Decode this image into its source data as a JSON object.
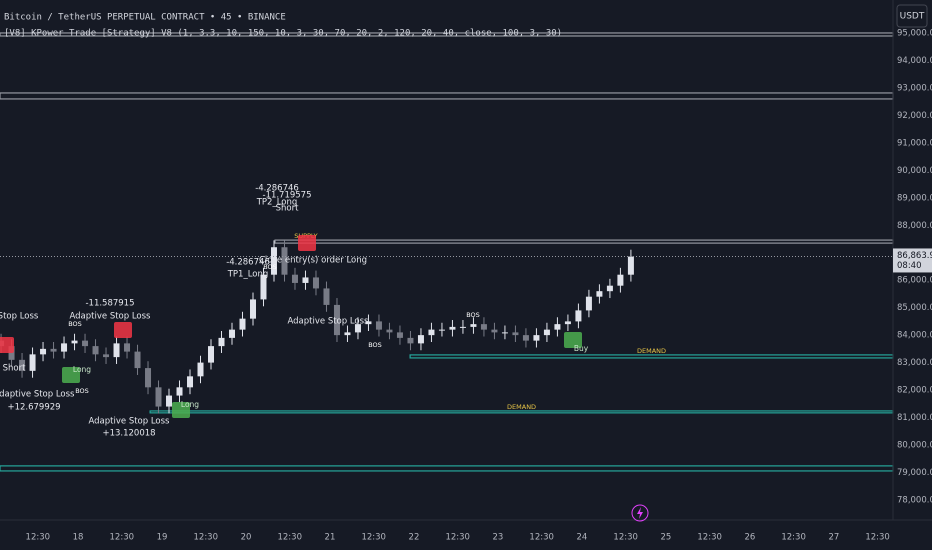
{
  "chart_data": {
    "type": "candlestick",
    "title": "Bitcoin / TetherUS PERPETUAL CONTRACT • 45 • BINANCE",
    "subtitle": "[V8] KPower Trade [Strategy] V8 (1, 3.3, 10, 150, 10, 3, 30, 70, 20, 2, 120, 20, 40, close, 100, 3, 30)",
    "currency": "USDT",
    "countdown": "08:40",
    "up_color": "#e0e3eb",
    "down_color": "#787b86",
    "grid": true,
    "x": [
      2,
      5,
      8,
      11,
      14,
      17,
      20,
      23,
      26,
      29,
      32,
      35,
      38,
      41,
      44,
      47,
      50,
      53,
      56,
      59,
      62,
      65,
      68,
      71,
      74,
      77,
      80,
      83,
      86,
      89,
      92,
      95,
      98,
      101,
      104,
      107,
      110,
      113,
      116,
      119,
      122,
      125,
      128,
      131,
      134,
      137,
      140,
      143,
      146,
      149,
      152,
      155,
      158,
      161,
      164,
      167,
      170,
      173,
      176,
      179,
      182
    ],
    "open": [
      83800,
      83600,
      83100,
      82700,
      83300,
      83500,
      83400,
      83700,
      83800,
      83600,
      83300,
      83200,
      83700,
      83400,
      82800,
      82100,
      81400,
      81800,
      82100,
      82500,
      83000,
      83600,
      83900,
      84200,
      84600,
      85300,
      86200,
      87200,
      86200,
      85900,
      86100,
      85700,
      85100,
      84000,
      84100,
      84400,
      84500,
      84200,
      84100,
      83900,
      83700,
      84000,
      84200,
      84200,
      84300,
      84300,
      84400,
      84200,
      84100,
      84100,
      84000,
      83800,
      84000,
      84200,
      84400,
      84500,
      84900,
      85400,
      85600,
      85800,
      86200
    ],
    "high": [
      84050,
      83850,
      83350,
      83550,
      83750,
      83750,
      83950,
      84050,
      84050,
      83850,
      83550,
      83950,
      83950,
      83650,
      83050,
      82350,
      82050,
      82350,
      82750,
      83250,
      83850,
      84150,
      84450,
      84850,
      85550,
      86450,
      87450,
      87450,
      86450,
      86350,
      86350,
      85950,
      85350,
      84350,
      84650,
      84750,
      84750,
      84450,
      84350,
      84150,
      84250,
      84450,
      84450,
      84550,
      84550,
      84650,
      84650,
      84450,
      84350,
      84350,
      84250,
      84250,
      84450,
      84650,
      84750,
      85150,
      85650,
      85850,
      86050,
      86450,
      87110
    ],
    "low": [
      83350,
      82850,
      82450,
      82450,
      83050,
      83150,
      83150,
      83450,
      83350,
      83050,
      82950,
      82950,
      83150,
      82550,
      81850,
      81150,
      81150,
      81550,
      81850,
      82250,
      82750,
      83350,
      83650,
      83950,
      84350,
      85050,
      85950,
      85950,
      85650,
      85650,
      85450,
      84850,
      83750,
      83750,
      83850,
      84150,
      83950,
      83850,
      83650,
      83450,
      83450,
      83750,
      83950,
      83950,
      84050,
      84050,
      83950,
      83850,
      83850,
      83750,
      83550,
      83550,
      83750,
      83950,
      84150,
      84250,
      84650,
      85150,
      85350,
      85550,
      85950
    ],
    "close": [
      83600,
      83100,
      82700,
      83300,
      83500,
      83400,
      83700,
      83800,
      83600,
      83300,
      83200,
      83700,
      83400,
      82800,
      82100,
      81400,
      81800,
      82100,
      82500,
      83000,
      83600,
      83900,
      84200,
      84600,
      85300,
      86200,
      87200,
      86200,
      85900,
      86100,
      85700,
      85100,
      84000,
      84100,
      84400,
      84500,
      84200,
      84100,
      83900,
      83700,
      84000,
      84200,
      84200,
      84300,
      84300,
      84400,
      84200,
      84100,
      84100,
      84000,
      83800,
      84000,
      84200,
      84400,
      84500,
      84900,
      85400,
      85600,
      85800,
      86200,
      86860
    ],
    "xlim": [
      1.7,
      256.9
    ],
    "xticks": [
      {
        "value": 12.5,
        "label": "12:30"
      },
      {
        "value": 24,
        "label": "18"
      },
      {
        "value": 36.5,
        "label": "12:30"
      },
      {
        "value": 48,
        "label": "19"
      },
      {
        "value": 60.5,
        "label": "12:30"
      },
      {
        "value": 72,
        "label": "20"
      },
      {
        "value": 84.5,
        "label": "12:30"
      },
      {
        "value": 96,
        "label": "21"
      },
      {
        "value": 108.5,
        "label": "12:30"
      },
      {
        "value": 120,
        "label": "22"
      },
      {
        "value": 132.5,
        "label": "12:30"
      },
      {
        "value": 144,
        "label": "23"
      },
      {
        "value": 156.5,
        "label": "12:30"
      },
      {
        "value": 168,
        "label": "24"
      },
      {
        "value": 180.5,
        "label": "12:30"
      },
      {
        "value": 192,
        "label": "25"
      },
      {
        "value": 204.5,
        "label": "12:30"
      },
      {
        "value": 216,
        "label": "26"
      },
      {
        "value": 228.5,
        "label": "12:30"
      },
      {
        "value": 240,
        "label": "27"
      },
      {
        "value": 252.5,
        "label": "12:30"
      }
    ],
    "ylim": [
      77270,
      96200
    ],
    "yticks": [
      {
        "value": 78000,
        "label": "78,000.0"
      },
      {
        "value": 79000,
        "label": "79,000.0"
      },
      {
        "value": 80000,
        "label": "80,000.0"
      },
      {
        "value": 81000,
        "label": "81,000.0"
      },
      {
        "value": 82000,
        "label": "82,000.0"
      },
      {
        "value": 83000,
        "label": "83,000.0"
      },
      {
        "value": 84000,
        "label": "84,000.0"
      },
      {
        "value": 85000,
        "label": "85,000.0"
      },
      {
        "value": 86000,
        "label": "86,000.0"
      },
      {
        "value": 87000,
        "label": "87,000.0"
      },
      {
        "value": 88000,
        "label": "88,000.0"
      },
      {
        "value": 89000,
        "label": "89,000.0"
      },
      {
        "value": 90000,
        "label": "90,000.0"
      },
      {
        "value": 91000,
        "label": "91,000.0"
      },
      {
        "value": 92000,
        "label": "92,000.0"
      },
      {
        "value": 93000,
        "label": "93,000.0"
      },
      {
        "value": 94000,
        "label": "94,000.0"
      },
      {
        "value": 95000,
        "label": "95,000.0"
      }
    ],
    "last_price": {
      "value": 86863.9,
      "label": "86,863.9"
    },
    "levels": [
      {
        "top": 95000,
        "bottom": 94890,
        "color": "#9598a1"
      },
      {
        "top": 92816,
        "bottom": 92598,
        "color": "#9598a1"
      },
      {
        "top": 87460,
        "bottom": 87350,
        "from": 80.3,
        "color": "#9598a1",
        "label": "SUPPLY"
      },
      {
        "top": 83280,
        "bottom": 83170,
        "from": 118.9,
        "color": "#26a69a",
        "label": "DEMAND"
      },
      {
        "top": 81240,
        "bottom": 81170,
        "from": 44.6,
        "color": "#26a69a",
        "label": "DEMAND"
      },
      {
        "top": 79240,
        "bottom": 79056,
        "color": "#26a69a"
      }
    ],
    "annotations": [
      "-4.286746",
      "TP2_Long",
      "-11.719575",
      "Short",
      "-4.286746",
      "TP1_Long",
      "Close entry(s) order Long",
      "-11.587915",
      "Adaptive Stop Loss",
      "Stop Loss",
      "Short",
      "Adaptive Stop Loss",
      "+12.679929",
      "Adaptive Stop Loss",
      "+13.120018",
      "Adaptive Stop Loss",
      "BOS",
      "BOS",
      "BOS",
      "BOS",
      "BOS",
      "Long",
      "Long",
      "Buy"
    ]
  }
}
